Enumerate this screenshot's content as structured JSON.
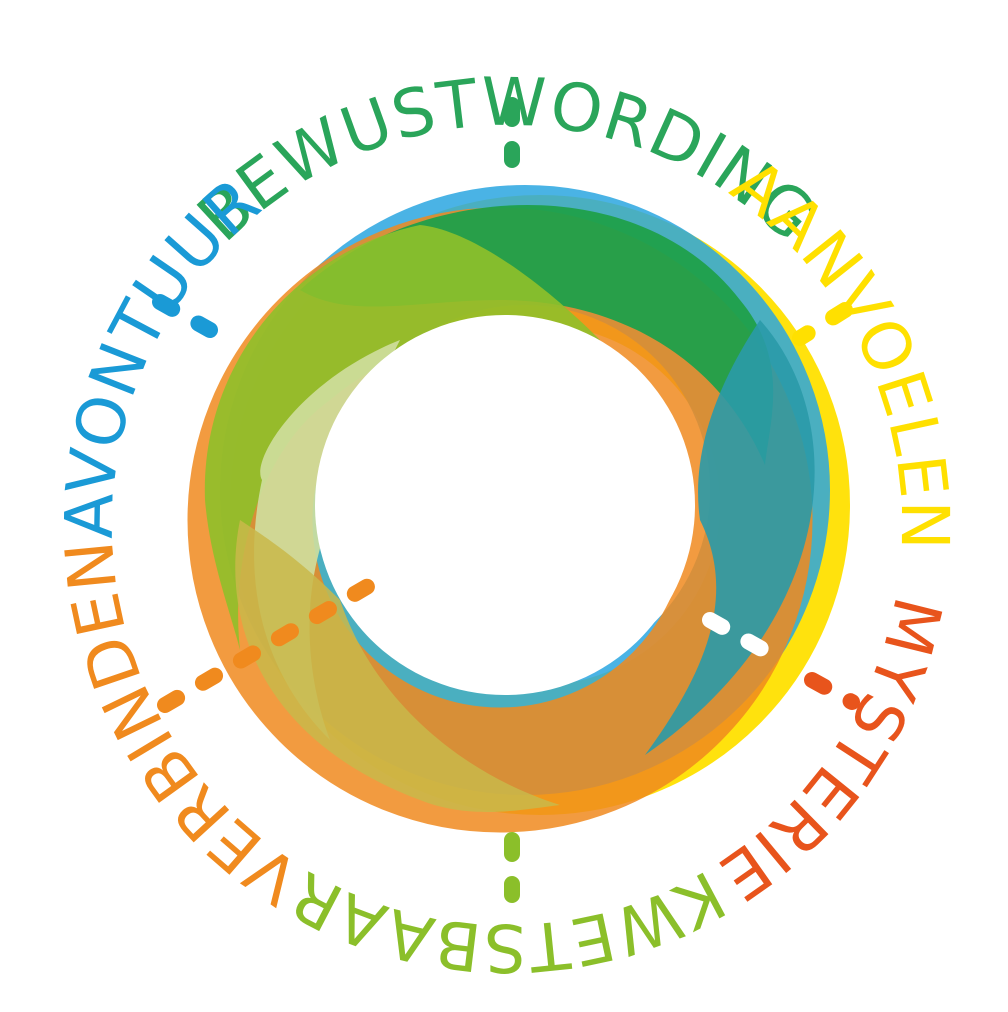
{
  "words": [
    "BEWUSTWORDING",
    "AANVOELEN",
    "MYSTERIE",
    "KWETSBAAR",
    "VERBINDEN",
    "AVONTUUR"
  ]
}
